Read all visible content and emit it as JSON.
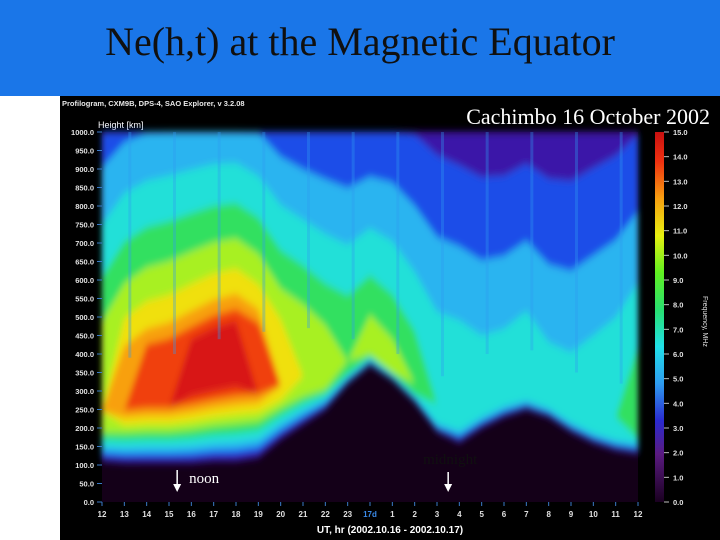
{
  "slide": {
    "title": "Ne(h,t) at the Magnetic Equator",
    "banner_color": "#1a76e8"
  },
  "chart_data": {
    "type": "heatmap",
    "software_label": "Profilogram, CXM9B, DPS-4, SAO Explorer, v 3.2.08",
    "station_label": "Cachimbo 16 October 2002",
    "ylabel": "Height [km]",
    "xlabel": "UT, hr (2002.10.16 - 2002.10.17)",
    "colorbar_label": "Frequency, MHz",
    "ylim": [
      0,
      1000
    ],
    "y_ticks": [
      "0.0",
      "50.0",
      "100.0",
      "150.0",
      "200.0",
      "250.0",
      "300.0",
      "350.0",
      "400.0",
      "450.0",
      "500.0",
      "550.0",
      "600.0",
      "650.0",
      "700.0",
      "750.0",
      "800.0",
      "850.0",
      "900.0",
      "950.0",
      "1000.0"
    ],
    "x_ticks": [
      "12",
      "13",
      "14",
      "15",
      "16",
      "17",
      "18",
      "19",
      "20",
      "21",
      "22",
      "23",
      "17d",
      "1",
      "2",
      "3",
      "4",
      "5",
      "6",
      "7",
      "8",
      "9",
      "10",
      "11",
      "12"
    ],
    "colorbar_range": [
      0,
      15
    ],
    "colorbar_ticks": [
      "0.0",
      "1.0",
      "2.0",
      "3.0",
      "4.0",
      "5.0",
      "6.0",
      "7.0",
      "8.0",
      "9.0",
      "10.0",
      "11.0",
      "12.0",
      "13.0",
      "14.0",
      "15.0"
    ],
    "annotations": [
      {
        "text": "noon",
        "x_index": 3.5
      },
      {
        "text": "midnight",
        "x_index": 15.5
      }
    ],
    "profile_hours": [
      0,
      1,
      2,
      3,
      4,
      5,
      6,
      7,
      8,
      9,
      10,
      11,
      12,
      13,
      14,
      15,
      16,
      17,
      18,
      19,
      20,
      21,
      22,
      23,
      24
    ],
    "bottom_height_km": [
      110,
      105,
      105,
      105,
      105,
      110,
      110,
      120,
      170,
      210,
      250,
      320,
      370,
      330,
      270,
      190,
      160,
      200,
      230,
      250,
      230,
      190,
      160,
      140,
      130
    ],
    "peak_height_km": [
      380,
      390,
      400,
      400,
      420,
      440,
      460,
      460,
      460,
      470,
      440,
      440,
      470,
      400,
      370,
      340,
      380,
      400,
      420,
      410,
      380,
      350,
      330,
      320,
      320
    ],
    "max_frequency_mhz": [
      10.5,
      12.5,
      13.5,
      14,
      14.5,
      15,
      15,
      13.5,
      11,
      10,
      9.5,
      9,
      9.5,
      9.5,
      8.5,
      7.5,
      7,
      6.5,
      6.5,
      7,
      6.5,
      6.5,
      7,
      7.5,
      8.5
    ],
    "colors": {
      "background": "#000000",
      "axis_text": "#e0e0e0",
      "label_text": "#ffffff"
    }
  }
}
